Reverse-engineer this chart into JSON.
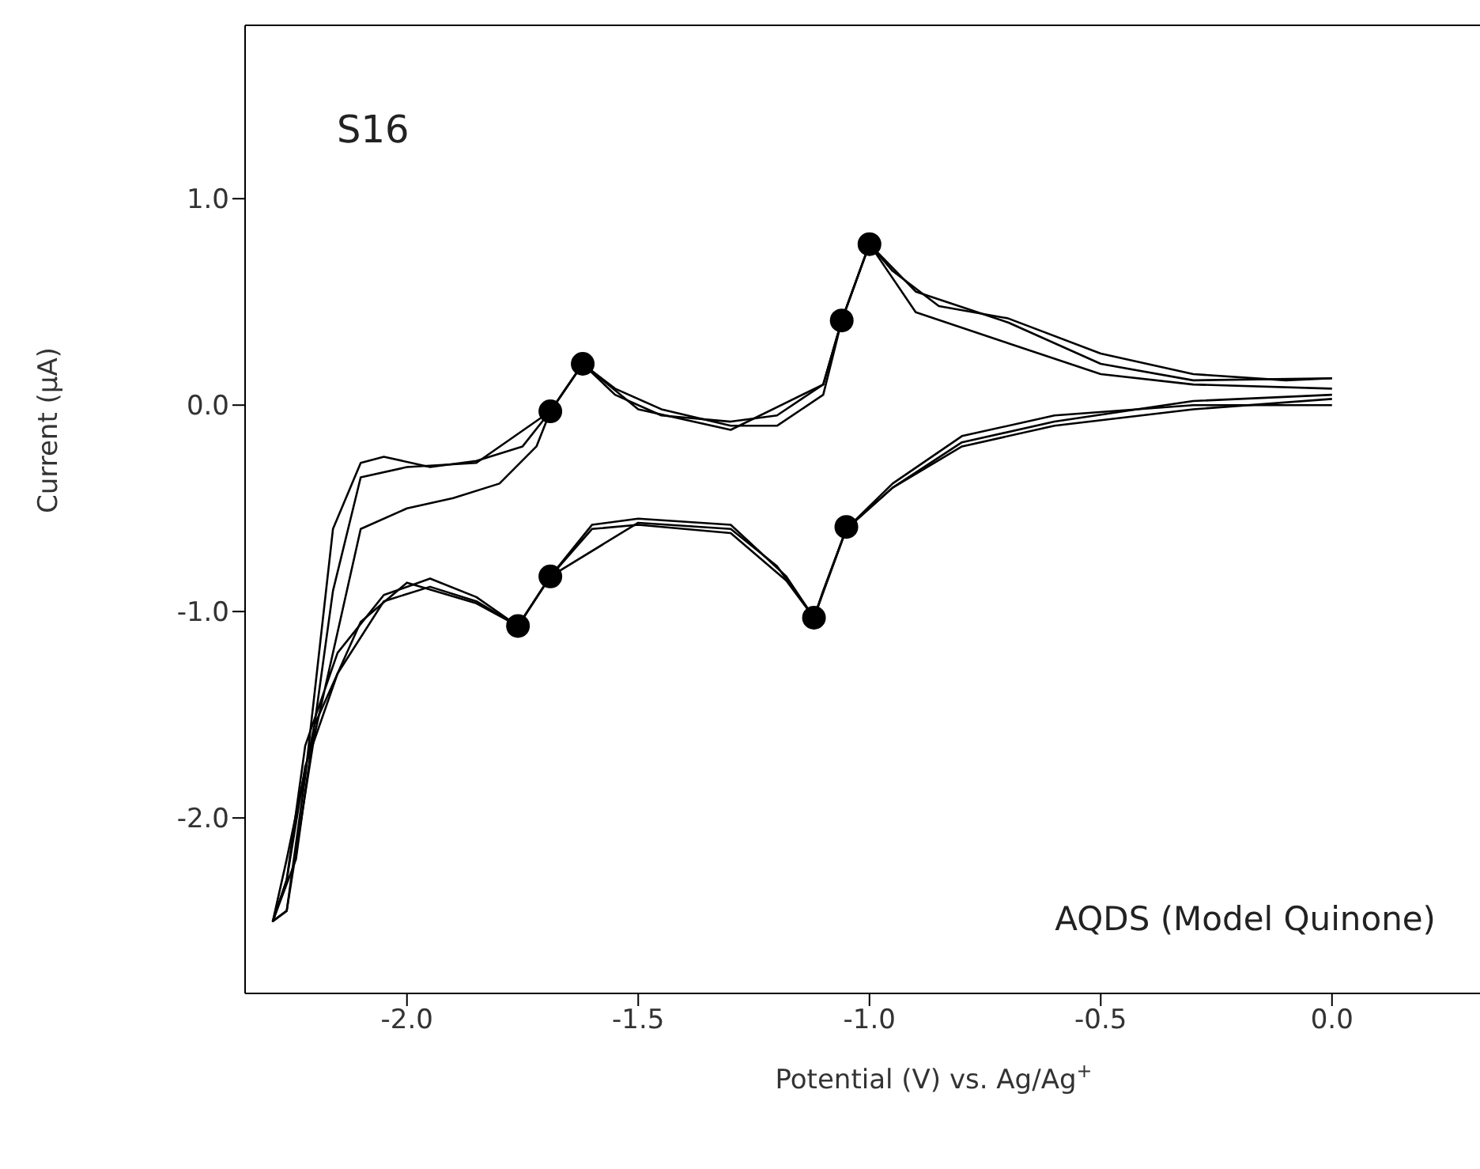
{
  "chart_data": {
    "type": "line",
    "xlabel": "Potential (V) vs. Ag/Ag$^{+}$",
    "ylabel": "Current (µA)",
    "annotations": [
      "S16",
      "AQDS (Model Quinone)"
    ],
    "xlim": [
      -2.35,
      0.32
    ],
    "ylim": [
      -2.85,
      1.84
    ],
    "xticks": [
      {
        "value": -2,
        "label": "-2.0"
      },
      {
        "value": -1.5,
        "label": "-1.5"
      },
      {
        "value": -1,
        "label": "-1.0"
      },
      {
        "value": -0.5,
        "label": "-0.5"
      },
      {
        "value": 0,
        "label": "0.0"
      }
    ],
    "yticks": [
      {
        "value": -2,
        "label": "-2.0"
      },
      {
        "value": -1,
        "label": "-1.0"
      },
      {
        "value": 0,
        "label": "0.0"
      },
      {
        "value": 1,
        "label": "1.0"
      }
    ],
    "marker": "none",
    "line_style": "solid",
    "series": [
      {
        "color": "#000000",
        "x": [
          0,
          -0.3,
          -0.6,
          -0.8,
          -0.95,
          -1.05,
          -1.1,
          -1.12,
          -1.18,
          -1.3,
          -1.5,
          -1.6,
          -1.69,
          -1.76,
          -1.85,
          -1.95,
          -2.05,
          -2.15,
          -2.22,
          -2.26,
          -2.29,
          -2.26,
          -2.22,
          -2.16,
          -2.1,
          -2.05,
          -1.95,
          -1.85,
          -1.75,
          -1.69,
          -1.62,
          -1.55,
          -1.45,
          -1.3,
          -1.2,
          -1.1,
          -1.06,
          -1,
          -0.95,
          -0.85,
          -0.7,
          -0.5,
          -0.3,
          -0.1,
          0
        ],
        "values": [
          0.03,
          -0.02,
          -0.1,
          -0.2,
          -0.4,
          -0.6,
          -0.9,
          -1.03,
          -0.85,
          -0.62,
          -0.58,
          -0.6,
          -0.83,
          -1.07,
          -0.95,
          -0.88,
          -0.95,
          -1.3,
          -1.75,
          -2.3,
          -2.5,
          -2.45,
          -1.8,
          -0.6,
          -0.28,
          -0.25,
          -0.3,
          -0.27,
          -0.2,
          -0.03,
          0.2,
          0.05,
          -0.05,
          -0.08,
          -0.05,
          0.1,
          0.41,
          0.78,
          0.65,
          0.48,
          0.42,
          0.25,
          0.15,
          0.12,
          0.13
        ]
      },
      {
        "color": "#000000",
        "x": [
          0,
          -0.3,
          -0.6,
          -0.8,
          -0.95,
          -1.05,
          -1.1,
          -1.12,
          -1.18,
          -1.3,
          -1.5,
          -1.6,
          -1.69,
          -1.76,
          -1.85,
          -1.95,
          -2.05,
          -2.15,
          -2.22,
          -2.26,
          -2.29,
          -2.26,
          -2.2,
          -2.1,
          -2,
          -1.9,
          -1.8,
          -1.72,
          -1.69,
          -1.62,
          -1.55,
          -1.45,
          -1.3,
          -1.2,
          -1.1,
          -1.06,
          -1,
          -0.9,
          -0.7,
          -0.5,
          -0.3,
          0
        ],
        "values": [
          0,
          0,
          -0.05,
          -0.15,
          -0.38,
          -0.6,
          -0.9,
          -1.03,
          -0.83,
          -0.58,
          -0.55,
          -0.58,
          -0.83,
          -1.07,
          -0.93,
          -0.84,
          -0.92,
          -1.2,
          -1.65,
          -2.3,
          -2.5,
          -2.45,
          -1.6,
          -0.6,
          -0.5,
          -0.45,
          -0.38,
          -0.2,
          -0.03,
          0.2,
          0.08,
          -0.02,
          -0.1,
          -0.1,
          0.05,
          0.41,
          0.78,
          0.45,
          0.3,
          0.15,
          0.1,
          0.08
        ]
      },
      {
        "color": "#000000",
        "x": [
          0,
          -0.3,
          -0.6,
          -0.8,
          -0.95,
          -1.05,
          -1.12,
          -1.2,
          -1.3,
          -1.5,
          -1.69,
          -1.76,
          -1.85,
          -2,
          -2.1,
          -2.2,
          -2.26,
          -2.29,
          -2.24,
          -2.16,
          -2.1,
          -2,
          -1.85,
          -1.69,
          -1.62,
          -1.5,
          -1.3,
          -1.1,
          -1.06,
          -1,
          -0.9,
          -0.7,
          -0.5,
          -0.3,
          0
        ],
        "values": [
          0.05,
          0.02,
          -0.08,
          -0.18,
          -0.4,
          -0.6,
          -1.03,
          -0.78,
          -0.6,
          -0.57,
          -0.83,
          -1.07,
          -0.96,
          -0.86,
          -1.05,
          -1.55,
          -2.2,
          -2.5,
          -2.2,
          -0.9,
          -0.35,
          -0.3,
          -0.28,
          -0.03,
          0.2,
          -0.02,
          -0.12,
          0.1,
          0.41,
          0.78,
          0.55,
          0.4,
          0.2,
          0.12,
          0.13
        ]
      },
      {
        "type": "scatter",
        "marker": "circle",
        "color": "#000000",
        "x": [
          -1.62,
          -1.69,
          -1.0,
          -1.06,
          -1.76,
          -1.69,
          -1.12,
          -1.05
        ],
        "values": [
          0.2,
          -0.03,
          0.78,
          0.41,
          -1.07,
          -0.83,
          -1.03,
          -0.59
        ]
      }
    ]
  }
}
